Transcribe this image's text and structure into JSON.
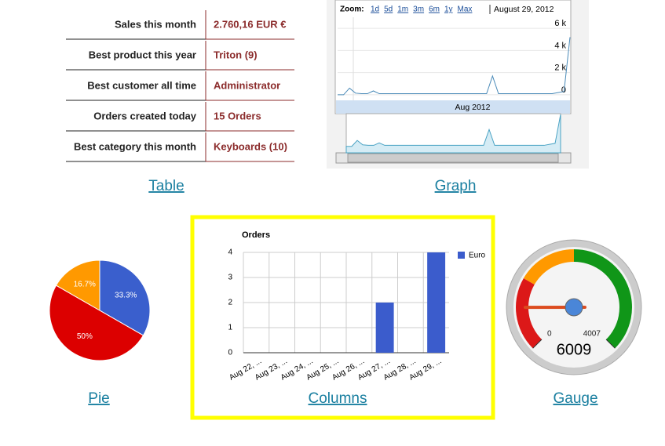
{
  "table": {
    "rows": [
      [
        "Sales this month",
        "2.760,16 EUR €"
      ],
      [
        "Best product this year",
        "Triton (9)"
      ],
      [
        "Best customer all time",
        "Administrator"
      ],
      [
        "Orders created today",
        "15 Orders"
      ],
      [
        "Best category this month",
        "Keyboards (10)"
      ]
    ]
  },
  "links": {
    "table": "Table",
    "graph": "Graph",
    "pie": "Pie",
    "columns": "Columns",
    "gauge": "Gauge"
  },
  "chart_data": [
    {
      "type": "line",
      "toolbar": {
        "zoom_label": "Zoom:",
        "zoom_options": [
          "1d",
          "5d",
          "1m",
          "3m",
          "6m",
          "1y",
          "Max"
        ],
        "date": "August 29, 2012"
      },
      "navigator_label": "Aug 2012",
      "values": [
        0,
        0,
        600,
        150,
        100,
        100,
        350,
        100,
        100,
        100,
        100,
        100,
        100,
        100,
        100,
        100,
        100,
        100,
        100,
        100,
        100,
        100,
        100,
        100,
        100,
        100,
        1700,
        100,
        100,
        100,
        100,
        100,
        100,
        100,
        100,
        100,
        100,
        200,
        300,
        5200
      ],
      "color": "#4a8ab8",
      "ylim": [
        -500,
        7000
      ],
      "yticks": [
        0,
        {
          "value": 2000,
          "label": "2 k"
        },
        {
          "value": 4000,
          "label": "4 k"
        },
        {
          "value": 6000,
          "label": "6 k"
        }
      ],
      "grid": true
    },
    {
      "type": "pie",
      "values": [
        33.3,
        50,
        16.7
      ],
      "value_labels": [
        "33.3%",
        "50%",
        "16.7%"
      ],
      "colors": [
        "#3a5fcd",
        "#dc0000",
        "#ff9900"
      ]
    },
    {
      "type": "bar",
      "title": "Orders",
      "categories": [
        "Aug 22, ...",
        "Aug 23, ...",
        "Aug 24, ...",
        "Aug 25, ...",
        "Aug 26, ...",
        "Aug 27, ...",
        "Aug 28, ...",
        "Aug 29, ..."
      ],
      "series": [
        {
          "name": "Euro",
          "color": "#3b5ccc",
          "values": [
            0,
            0,
            0,
            0,
            0,
            2,
            0,
            4
          ]
        }
      ],
      "ylim": [
        0,
        4
      ],
      "yticks": [
        0,
        1,
        2,
        3,
        4
      ],
      "grid": true
    },
    {
      "type": "gauge",
      "value": 6009,
      "ylim": [
        0,
        4007
      ],
      "yticks": [
        0,
        4007
      ]
    }
  ]
}
